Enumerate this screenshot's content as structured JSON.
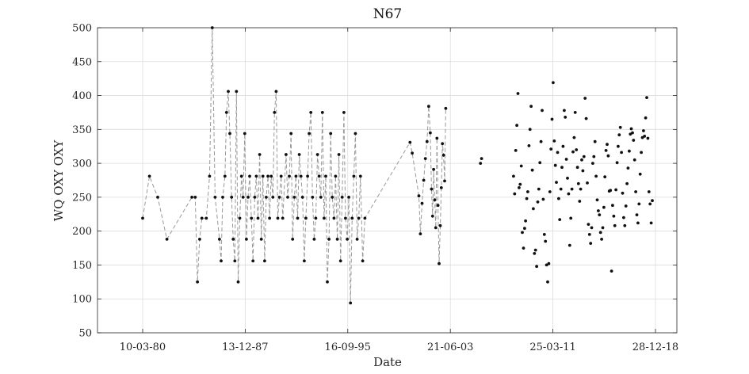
{
  "chart_data": {
    "type": "scatter",
    "title": "N67",
    "xlabel": "Date",
    "ylabel": "WQ OXY OXY",
    "ylim": [
      50,
      500
    ],
    "yticks": [
      50,
      100,
      150,
      200,
      250,
      300,
      350,
      400,
      450,
      500
    ],
    "xlim": [
      "1977-07-22",
      "1990-01-01",
      "2019-07-01"
    ],
    "xlim_note_removed": true,
    "xticks": [
      "10-03-80",
      "13-12-87",
      "16-09-95",
      "21-06-03",
      "25-03-11",
      "28-12-18"
    ],
    "xtick_dates": [
      "1980-03-10",
      "1987-12-13",
      "1995-09-16",
      "2003-06-21",
      "2011-03-25",
      "2018-12-28"
    ],
    "grid": true,
    "line_color": "#999999",
    "marker_color": "#111111",
    "series": [
      {
        "connected": true,
        "points": [
          [
            "1980-03-10",
            219
          ],
          [
            "1980-09-15",
            281
          ],
          [
            "1981-05-01",
            250
          ],
          [
            "1982-01-10",
            188
          ],
          [
            "1983-12-01",
            250
          ],
          [
            "1984-03-01",
            250
          ],
          [
            "1984-05-01",
            125
          ],
          [
            "1984-07-01",
            188
          ],
          [
            "1984-09-01",
            219
          ],
          [
            "1985-01-01",
            219
          ],
          [
            "1985-04-01",
            281
          ],
          [
            "1985-06-15",
            500
          ],
          [
            "1985-09-01",
            250
          ],
          [
            "1986-01-01",
            188
          ],
          [
            "1986-02-15",
            156
          ],
          [
            "1986-04-01",
            250
          ],
          [
            "1986-06-01",
            281
          ],
          [
            "1986-07-15",
            375
          ],
          [
            "1986-09-01",
            406
          ],
          [
            "1986-10-15",
            344
          ],
          [
            "1986-12-01",
            250
          ],
          [
            "1987-01-15",
            188
          ],
          [
            "1987-03-01",
            156
          ],
          [
            "1987-04-15",
            406
          ],
          [
            "1987-06-01",
            125
          ],
          [
            "1987-07-15",
            219
          ],
          [
            "1987-09-01",
            281
          ],
          [
            "1987-10-15",
            250
          ],
          [
            "1987-12-01",
            344
          ],
          [
            "1988-01-15",
            188
          ],
          [
            "1988-03-01",
            250
          ],
          [
            "1988-04-15",
            281
          ],
          [
            "1988-06-01",
            219
          ],
          [
            "1988-07-15",
            156
          ],
          [
            "1988-09-01",
            250
          ],
          [
            "1988-10-15",
            281
          ],
          [
            "1988-12-01",
            219
          ],
          [
            "1989-01-15",
            313
          ],
          [
            "1989-03-01",
            188
          ],
          [
            "1989-04-15",
            281
          ],
          [
            "1989-06-01",
            156
          ],
          [
            "1989-07-15",
            250
          ],
          [
            "1989-09-01",
            281
          ],
          [
            "1989-10-15",
            219
          ],
          [
            "1989-12-01",
            281
          ],
          [
            "1990-01-15",
            250
          ],
          [
            "1990-03-01",
            375
          ],
          [
            "1990-04-15",
            406
          ],
          [
            "1990-06-01",
            219
          ],
          [
            "1990-07-15",
            250
          ],
          [
            "1990-09-01",
            281
          ],
          [
            "1990-10-15",
            219
          ],
          [
            "1991-01-15",
            313
          ],
          [
            "1991-03-01",
            250
          ],
          [
            "1991-04-15",
            281
          ],
          [
            "1991-06-01",
            344
          ],
          [
            "1991-07-15",
            188
          ],
          [
            "1991-09-01",
            250
          ],
          [
            "1991-10-15",
            281
          ],
          [
            "1991-12-01",
            219
          ],
          [
            "1992-01-15",
            313
          ],
          [
            "1992-03-01",
            281
          ],
          [
            "1992-04-15",
            250
          ],
          [
            "1992-06-01",
            156
          ],
          [
            "1992-07-15",
            219
          ],
          [
            "1992-09-01",
            281
          ],
          [
            "1992-10-15",
            344
          ],
          [
            "1992-12-01",
            375
          ],
          [
            "1993-01-15",
            250
          ],
          [
            "1993-03-01",
            188
          ],
          [
            "1993-04-15",
            219
          ],
          [
            "1993-06-01",
            313
          ],
          [
            "1993-07-15",
            281
          ],
          [
            "1993-09-01",
            250
          ],
          [
            "1993-10-15",
            375
          ],
          [
            "1993-12-01",
            219
          ],
          [
            "1994-01-15",
            281
          ],
          [
            "1994-03-01",
            125
          ],
          [
            "1994-04-15",
            188
          ],
          [
            "1994-06-01",
            344
          ],
          [
            "1994-07-15",
            250
          ],
          [
            "1994-09-01",
            219
          ],
          [
            "1994-10-15",
            281
          ],
          [
            "1994-12-01",
            188
          ],
          [
            "1995-01-15",
            313
          ],
          [
            "1995-03-01",
            156
          ],
          [
            "1995-04-15",
            250
          ],
          [
            "1995-06-01",
            375
          ],
          [
            "1995-07-15",
            219
          ],
          [
            "1995-09-01",
            188
          ],
          [
            "1995-10-15",
            250
          ],
          [
            "1995-12-01",
            94
          ],
          [
            "1996-01-15",
            219
          ],
          [
            "1996-03-01",
            281
          ],
          [
            "1996-04-15",
            344
          ],
          [
            "1996-06-01",
            188
          ],
          [
            "1996-07-15",
            219
          ],
          [
            "1996-09-01",
            281
          ],
          [
            "1996-11-01",
            156
          ],
          [
            "1997-01-01",
            219
          ],
          [
            "2000-06-01",
            331
          ],
          [
            "2000-08-01",
            315
          ],
          [
            "2001-02-01",
            252
          ],
          [
            "2001-03-15",
            196
          ],
          [
            "2001-05-01",
            241
          ],
          [
            "2001-06-15",
            275
          ],
          [
            "2001-08-01",
            307
          ],
          [
            "2001-09-15",
            332
          ],
          [
            "2001-11-01",
            384
          ],
          [
            "2001-12-15",
            345
          ],
          [
            "2002-01-15",
            262
          ],
          [
            "2002-02-15",
            222
          ],
          [
            "2002-03-15",
            291
          ],
          [
            "2002-04-15",
            246
          ],
          [
            "2002-05-15",
            205
          ],
          [
            "2002-06-15",
            337
          ],
          [
            "2002-07-15",
            238
          ],
          [
            "2002-08-15",
            152
          ],
          [
            "2002-09-15",
            208
          ],
          [
            "2002-10-15",
            264
          ],
          [
            "2002-11-15",
            329
          ],
          [
            "2002-12-15",
            312
          ],
          [
            "2003-01-15",
            274
          ],
          [
            "2003-02-15",
            381
          ]
        ]
      },
      {
        "connected": false,
        "points": [
          [
            "2005-10-01",
            300
          ],
          [
            "2005-11-01",
            307
          ],
          [
            "2008-04-01",
            281
          ],
          [
            "2008-05-01",
            255
          ],
          [
            "2008-06-01",
            319
          ],
          [
            "2008-07-01",
            356
          ],
          [
            "2008-08-01",
            403
          ],
          [
            "2008-09-01",
            264
          ],
          [
            "2008-10-01",
            269
          ],
          [
            "2008-11-01",
            296
          ],
          [
            "2008-12-01",
            198
          ],
          [
            "2009-01-01",
            175
          ],
          [
            "2009-02-01",
            204
          ],
          [
            "2009-03-01",
            215
          ],
          [
            "2009-04-01",
            248
          ],
          [
            "2009-05-01",
            258
          ],
          [
            "2009-06-01",
            326
          ],
          [
            "2009-07-01",
            350
          ],
          [
            "2009-08-01",
            384
          ],
          [
            "2009-09-01",
            290
          ],
          [
            "2009-10-01",
            233
          ],
          [
            "2009-11-01",
            167
          ],
          [
            "2009-12-01",
            172
          ],
          [
            "2010-01-01",
            148
          ],
          [
            "2010-02-01",
            243
          ],
          [
            "2010-03-01",
            262
          ],
          [
            "2010-04-01",
            301
          ],
          [
            "2010-05-01",
            332
          ],
          [
            "2010-06-01",
            378
          ],
          [
            "2010-07-01",
            247
          ],
          [
            "2010-08-01",
            195
          ],
          [
            "2010-09-01",
            185
          ],
          [
            "2010-10-01",
            150
          ],
          [
            "2010-11-01",
            125
          ],
          [
            "2010-12-01",
            152
          ],
          [
            "2011-01-01",
            258
          ],
          [
            "2011-02-01",
            321
          ],
          [
            "2011-03-01",
            365
          ],
          [
            "2011-04-01",
            419
          ],
          [
            "2011-05-01",
            333
          ],
          [
            "2011-06-01",
            297
          ],
          [
            "2011-07-01",
            272
          ],
          [
            "2011-08-01",
            316
          ],
          [
            "2011-09-01",
            248
          ],
          [
            "2011-10-01",
            217
          ],
          [
            "2011-11-01",
            262
          ],
          [
            "2011-12-01",
            294
          ],
          [
            "2012-01-01",
            325
          ],
          [
            "2012-02-01",
            378
          ],
          [
            "2012-03-01",
            368
          ],
          [
            "2012-04-01",
            306
          ],
          [
            "2012-05-01",
            278
          ],
          [
            "2012-06-01",
            255
          ],
          [
            "2012-07-01",
            179
          ],
          [
            "2012-08-01",
            219
          ],
          [
            "2012-09-01",
            262
          ],
          [
            "2012-10-01",
            317
          ],
          [
            "2012-11-01",
            338
          ],
          [
            "2012-12-01",
            375
          ],
          [
            "2013-01-01",
            320
          ],
          [
            "2013-02-01",
            294
          ],
          [
            "2013-03-01",
            270
          ],
          [
            "2013-04-01",
            244
          ],
          [
            "2013-05-01",
            262
          ],
          [
            "2013-06-01",
            305
          ],
          [
            "2013-07-01",
            289
          ],
          [
            "2013-08-01",
            310
          ],
          [
            "2013-09-01",
            396
          ],
          [
            "2013-10-01",
            366
          ],
          [
            "2013-11-01",
            271
          ],
          [
            "2013-12-01",
            210
          ],
          [
            "2014-01-01",
            195
          ],
          [
            "2014-02-01",
            182
          ],
          [
            "2014-03-01",
            205
          ],
          [
            "2014-04-01",
            300
          ],
          [
            "2014-05-01",
            310
          ],
          [
            "2014-06-01",
            332
          ],
          [
            "2014-07-01",
            281
          ],
          [
            "2014-08-01",
            246
          ],
          [
            "2014-09-01",
            230
          ],
          [
            "2014-10-01",
            224
          ],
          [
            "2014-11-01",
            198
          ],
          [
            "2014-12-01",
            188
          ],
          [
            "2015-01-01",
            205
          ],
          [
            "2015-02-01",
            235
          ],
          [
            "2015-03-01",
            280
          ],
          [
            "2015-04-01",
            319
          ],
          [
            "2015-05-01",
            328
          ],
          [
            "2015-06-01",
            311
          ],
          [
            "2015-07-01",
            259
          ],
          [
            "2015-08-01",
            260
          ],
          [
            "2015-09-01",
            141
          ],
          [
            "2015-10-01",
            238
          ],
          [
            "2015-11-01",
            222
          ],
          [
            "2015-12-01",
            208
          ],
          [
            "2016-01-01",
            261
          ],
          [
            "2016-02-01",
            301
          ],
          [
            "2016-03-01",
            325
          ],
          [
            "2016-04-01",
            342
          ],
          [
            "2016-05-01",
            353
          ],
          [
            "2016-06-01",
            316
          ],
          [
            "2016-07-01",
            256
          ],
          [
            "2016-08-01",
            220
          ],
          [
            "2016-09-01",
            208
          ],
          [
            "2016-10-01",
            237
          ],
          [
            "2016-11-01",
            270
          ],
          [
            "2016-12-01",
            293
          ],
          [
            "2017-01-01",
            318
          ],
          [
            "2017-02-01",
            343
          ],
          [
            "2017-03-01",
            351
          ],
          [
            "2017-04-01",
            345
          ],
          [
            "2017-05-01",
            334
          ],
          [
            "2017-06-01",
            305
          ],
          [
            "2017-07-01",
            258
          ],
          [
            "2017-08-01",
            224
          ],
          [
            "2017-09-01",
            212
          ],
          [
            "2017-10-01",
            240
          ],
          [
            "2017-11-01",
            284
          ],
          [
            "2017-12-01",
            316
          ],
          [
            "2018-01-01",
            338
          ],
          [
            "2018-02-01",
            348
          ],
          [
            "2018-03-01",
            340
          ],
          [
            "2018-04-01",
            367
          ],
          [
            "2018-05-01",
            397
          ],
          [
            "2018-06-01",
            337
          ],
          [
            "2018-07-01",
            258
          ],
          [
            "2018-08-01",
            240
          ],
          [
            "2018-09-01",
            212
          ],
          [
            "2018-10-01",
            245
          ]
        ]
      }
    ]
  }
}
